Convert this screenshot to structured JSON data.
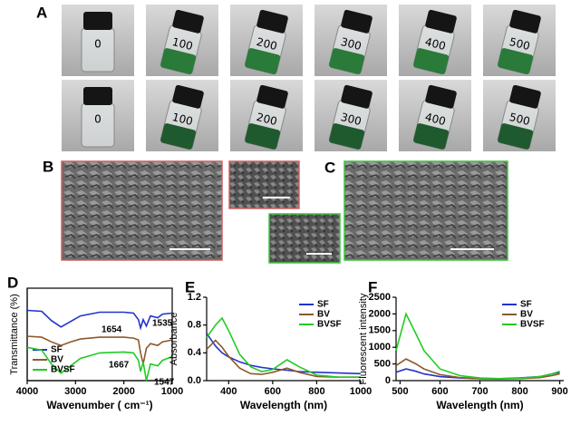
{
  "panel_labels": [
    "A",
    "B",
    "C",
    "D",
    "E",
    "F"
  ],
  "vial_labels": [
    "0",
    "100",
    "200",
    "300",
    "400",
    "500"
  ],
  "chart_data": [
    {
      "type": "line",
      "xlabel": "Wavenumber ( cm⁻¹)",
      "ylabel": "Transmittance (%)",
      "xlim": [
        4000,
        1000
      ],
      "xticks": [
        4000,
        3000,
        2000,
        1000
      ],
      "ylim": [
        0,
        100
      ],
      "legend": "lower left",
      "frame": true,
      "x": [
        4000,
        3700,
        3500,
        3300,
        3100,
        2900,
        2500,
        2000,
        1800,
        1700,
        1654,
        1600,
        1535,
        1450,
        1300,
        1200,
        1000
      ],
      "series": [
        {
          "name": "SF",
          "color": "#2233cc",
          "values": [
            76,
            75,
            65,
            58,
            64,
            70,
            74,
            74,
            73,
            66,
            57,
            66,
            59,
            70,
            68,
            72,
            73
          ]
        },
        {
          "name": "BV",
          "color": "#8b5a2b",
          "values": [
            48,
            47,
            42,
            38,
            42,
            45,
            47,
            47,
            46,
            44,
            30,
            18,
            35,
            40,
            38,
            42,
            44
          ]
        },
        {
          "name": "BVSF",
          "color": "#22cc22",
          "values": [
            36,
            33,
            18,
            8,
            16,
            24,
            30,
            31,
            30,
            22,
            10,
            20,
            0,
            18,
            16,
            22,
            26
          ]
        }
      ],
      "annotations": [
        "1654",
        "1535",
        "1667",
        "1547"
      ]
    },
    {
      "type": "line",
      "xlabel": "Wavelength (nm)",
      "ylabel": "Absorbance",
      "xlim": [
        300,
        1000
      ],
      "xticks": [
        400,
        600,
        800,
        1000
      ],
      "ylim": [
        0,
        1.2
      ],
      "yticks": [
        {
          "value": 0,
          "label": "0.0"
        },
        0.4,
        0.8,
        1.2
      ],
      "legend": "upper right",
      "frame": false,
      "x": [
        300,
        340,
        370,
        400,
        450,
        500,
        550,
        600,
        665,
        720,
        800,
        900,
        1000
      ],
      "series": [
        {
          "name": "SF",
          "color": "#2233cc",
          "values": [
            0.68,
            0.5,
            0.4,
            0.34,
            0.27,
            0.22,
            0.19,
            0.17,
            0.15,
            0.13,
            0.12,
            0.11,
            0.1
          ]
        },
        {
          "name": "BV",
          "color": "#8b5a2b",
          "values": [
            0.45,
            0.58,
            0.48,
            0.35,
            0.18,
            0.1,
            0.09,
            0.12,
            0.18,
            0.12,
            0.06,
            0.05,
            0.05
          ]
        },
        {
          "name": "BVSF",
          "color": "#22cc22",
          "values": [
            0.62,
            0.8,
            0.9,
            0.72,
            0.38,
            0.2,
            0.13,
            0.16,
            0.3,
            0.2,
            0.08,
            0.05,
            0.05
          ]
        }
      ]
    },
    {
      "type": "line",
      "xlabel": "Wavelength (nm)",
      "ylabel": "Fluorescent intensity",
      "xlim": [
        490,
        910
      ],
      "xticks": [
        500,
        600,
        700,
        800,
        900
      ],
      "ylim": [
        0,
        2500
      ],
      "yticks": [
        0,
        500,
        1000,
        1500,
        2000,
        2500
      ],
      "legend": "upper right",
      "frame": false,
      "x": [
        490,
        515,
        540,
        560,
        600,
        650,
        700,
        750,
        800,
        850,
        880,
        900
      ],
      "series": [
        {
          "name": "SF",
          "color": "#2233cc",
          "values": [
            250,
            350,
            280,
            200,
            120,
            80,
            60,
            60,
            80,
            120,
            200,
            250
          ]
        },
        {
          "name": "BV",
          "color": "#8b5a2b",
          "values": [
            450,
            650,
            500,
            350,
            180,
            90,
            60,
            50,
            60,
            90,
            150,
            200
          ]
        },
        {
          "name": "BVSF",
          "color": "#22cc22",
          "values": [
            900,
            2000,
            1400,
            900,
            350,
            150,
            80,
            60,
            70,
            120,
            200,
            280
          ]
        }
      ]
    }
  ]
}
